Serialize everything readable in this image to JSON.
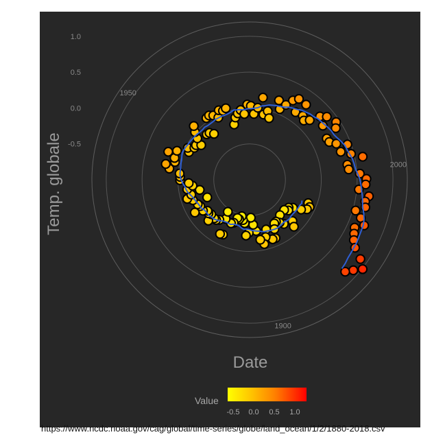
{
  "chart_data": {
    "type": "scatter",
    "coordinate_system": "polar",
    "title": "",
    "xlabel": "Date",
    "ylabel": "Temp. globale",
    "x_ticks": [
      "2000",
      "1900",
      "1950"
    ],
    "y_ticks": [
      "-0.5",
      "0.0",
      "0.5",
      "1.0"
    ],
    "ylim": [
      -1.0,
      1.2
    ],
    "xlim": [
      1880,
      2018
    ],
    "legend": {
      "title": "Value",
      "ticks": [
        "-0.5",
        "0.0",
        "0.5",
        "1.0"
      ],
      "range": [
        -0.65,
        1.25
      ],
      "placement": "bottom",
      "colors": [
        "#ffff00",
        "#ffc400",
        "#ff8000",
        "#ff0000"
      ]
    },
    "smooth_color": "#2e5fd6",
    "grid": true,
    "series": [
      {
        "x": [
          1880,
          1881,
          1882,
          1883,
          1884,
          1885,
          1886,
          1887,
          1888,
          1889,
          1890,
          1891,
          1892,
          1893,
          1894,
          1895,
          1896,
          1897,
          1898,
          1899,
          1900,
          1901,
          1902,
          1903,
          1904,
          1905,
          1906,
          1907,
          1908,
          1909,
          1910,
          1911,
          1912,
          1913,
          1914,
          1915,
          1916,
          1917,
          1918,
          1919,
          1920,
          1921,
          1922,
          1923,
          1924,
          1925,
          1926,
          1927,
          1928,
          1929,
          1930,
          1931,
          1932,
          1933,
          1934,
          1935,
          1936,
          1937,
          1938,
          1939,
          1940,
          1941,
          1942,
          1943,
          1944,
          1945,
          1946,
          1947,
          1948,
          1949,
          1950,
          1951,
          1952,
          1953,
          1954,
          1955,
          1956,
          1957,
          1958,
          1959,
          1960,
          1961,
          1962,
          1963,
          1964,
          1965,
          1966,
          1967,
          1968,
          1969,
          1970,
          1971,
          1972,
          1973,
          1974,
          1975,
          1976,
          1977,
          1978,
          1979,
          1980,
          1981,
          1982,
          1983,
          1984,
          1985,
          1986,
          1987,
          1988,
          1989,
          1990,
          1991,
          1992,
          1993,
          1994,
          1995,
          1996,
          1997,
          1998,
          1999,
          2000,
          2001,
          2002,
          2003,
          2004,
          2005,
          2006,
          2007,
          2008,
          2009,
          2010,
          2011,
          2012,
          2013,
          2014,
          2015,
          2016,
          2017,
          2018
        ],
        "values": [
          -0.12,
          -0.08,
          -0.1,
          -0.17,
          -0.28,
          -0.33,
          -0.31,
          -0.36,
          -0.17,
          -0.1,
          -0.35,
          -0.22,
          -0.27,
          -0.31,
          -0.3,
          -0.23,
          -0.11,
          -0.11,
          -0.27,
          -0.17,
          -0.08,
          -0.15,
          -0.28,
          -0.37,
          -0.47,
          -0.26,
          -0.22,
          -0.39,
          -0.43,
          -0.48,
          -0.43,
          -0.44,
          -0.36,
          -0.34,
          -0.15,
          -0.14,
          -0.36,
          -0.46,
          -0.3,
          -0.27,
          -0.27,
          -0.19,
          -0.28,
          -0.26,
          -0.27,
          -0.22,
          -0.11,
          -0.22,
          -0.2,
          -0.36,
          -0.16,
          -0.09,
          -0.16,
          -0.29,
          -0.12,
          -0.2,
          -0.15,
          -0.03,
          -0.03,
          -0.02,
          0.13,
          0.19,
          0.07,
          0.09,
          0.2,
          0.09,
          -0.07,
          -0.03,
          -0.11,
          -0.11,
          -0.17,
          -0.07,
          0.01,
          0.08,
          -0.13,
          -0.14,
          -0.19,
          0.05,
          0.06,
          0.03,
          -0.03,
          0.06,
          0.03,
          0.05,
          -0.2,
          -0.11,
          -0.06,
          -0.02,
          -0.08,
          0.05,
          0.03,
          -0.08,
          0.01,
          0.16,
          -0.07,
          -0.01,
          -0.1,
          0.18,
          0.07,
          0.16,
          0.26,
          0.32,
          0.14,
          0.31,
          0.16,
          0.12,
          0.18,
          0.32,
          0.39,
          0.27,
          0.45,
          0.4,
          0.22,
          0.23,
          0.31,
          0.45,
          0.33,
          0.46,
          0.61,
          0.38,
          0.39,
          0.54,
          0.63,
          0.62,
          0.53,
          0.68,
          0.64,
          0.66,
          0.54,
          0.64,
          0.72,
          0.61,
          0.64,
          0.68,
          0.75,
          0.9,
          1.01,
          0.92,
          0.85
        ]
      }
    ]
  },
  "caption": "https://www.ncdc.noaa.gov/cag/global/time-series/globe/land_ocean/1/2/1880-2018.csv"
}
